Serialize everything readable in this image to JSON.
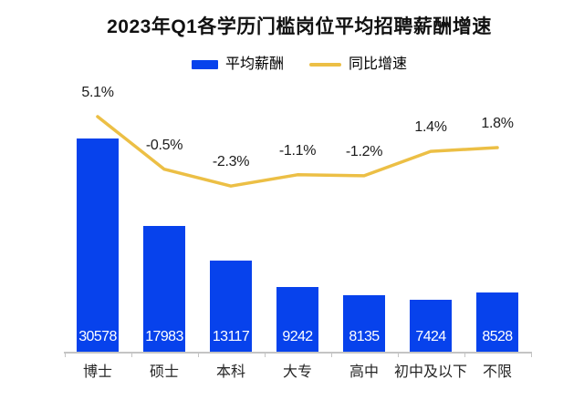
{
  "title": "2023年Q1各学历门槛岗位平均招聘薪酬增速",
  "legend": {
    "bar_label": "平均薪酬",
    "line_label": "同比增速"
  },
  "colors": {
    "bar": "#0742ec",
    "line": "#ecbf45",
    "axis": "#c4c4c4",
    "title_text": "#111111",
    "pct_text": "#1b1b1b",
    "category_text": "#262626",
    "bar_value_text": "#ffffff",
    "background": "#ffffff"
  },
  "chart_data": {
    "type": "bar",
    "title": "2023年Q1各学历门槛岗位平均招聘薪酬增速",
    "categories": [
      "博士",
      "硕士",
      "本科",
      "大专",
      "高中",
      "初中及以下",
      "不限"
    ],
    "series": [
      {
        "name": "平均薪酬",
        "type": "bar",
        "values": [
          30578,
          17983,
          13117,
          9242,
          8135,
          7424,
          8528
        ],
        "value_labels": [
          "30578",
          "17983",
          "13117",
          "9242",
          "8135",
          "7424",
          "8528"
        ],
        "color": "#0742ec",
        "value_label_style": "white, inside bar near bottom"
      },
      {
        "name": "同比增速",
        "type": "line",
        "unit": "%",
        "values": [
          5.1,
          -0.5,
          -2.3,
          -1.1,
          -1.2,
          1.4,
          1.8
        ],
        "labels": [
          "5.1%",
          "-0.5%",
          "-2.3%",
          "-1.1%",
          "-1.2%",
          "1.4%",
          "1.8%"
        ],
        "color": "#ecbf45",
        "value_label_style": "dark text above each point"
      }
    ],
    "legend_position": "top-center",
    "grid": false,
    "x_axis": {
      "line": true,
      "ticks": "between categories",
      "color": "#c4c4c4"
    },
    "y_axis": {
      "visible": false,
      "bar_range_implied": [
        0,
        30578
      ]
    }
  }
}
